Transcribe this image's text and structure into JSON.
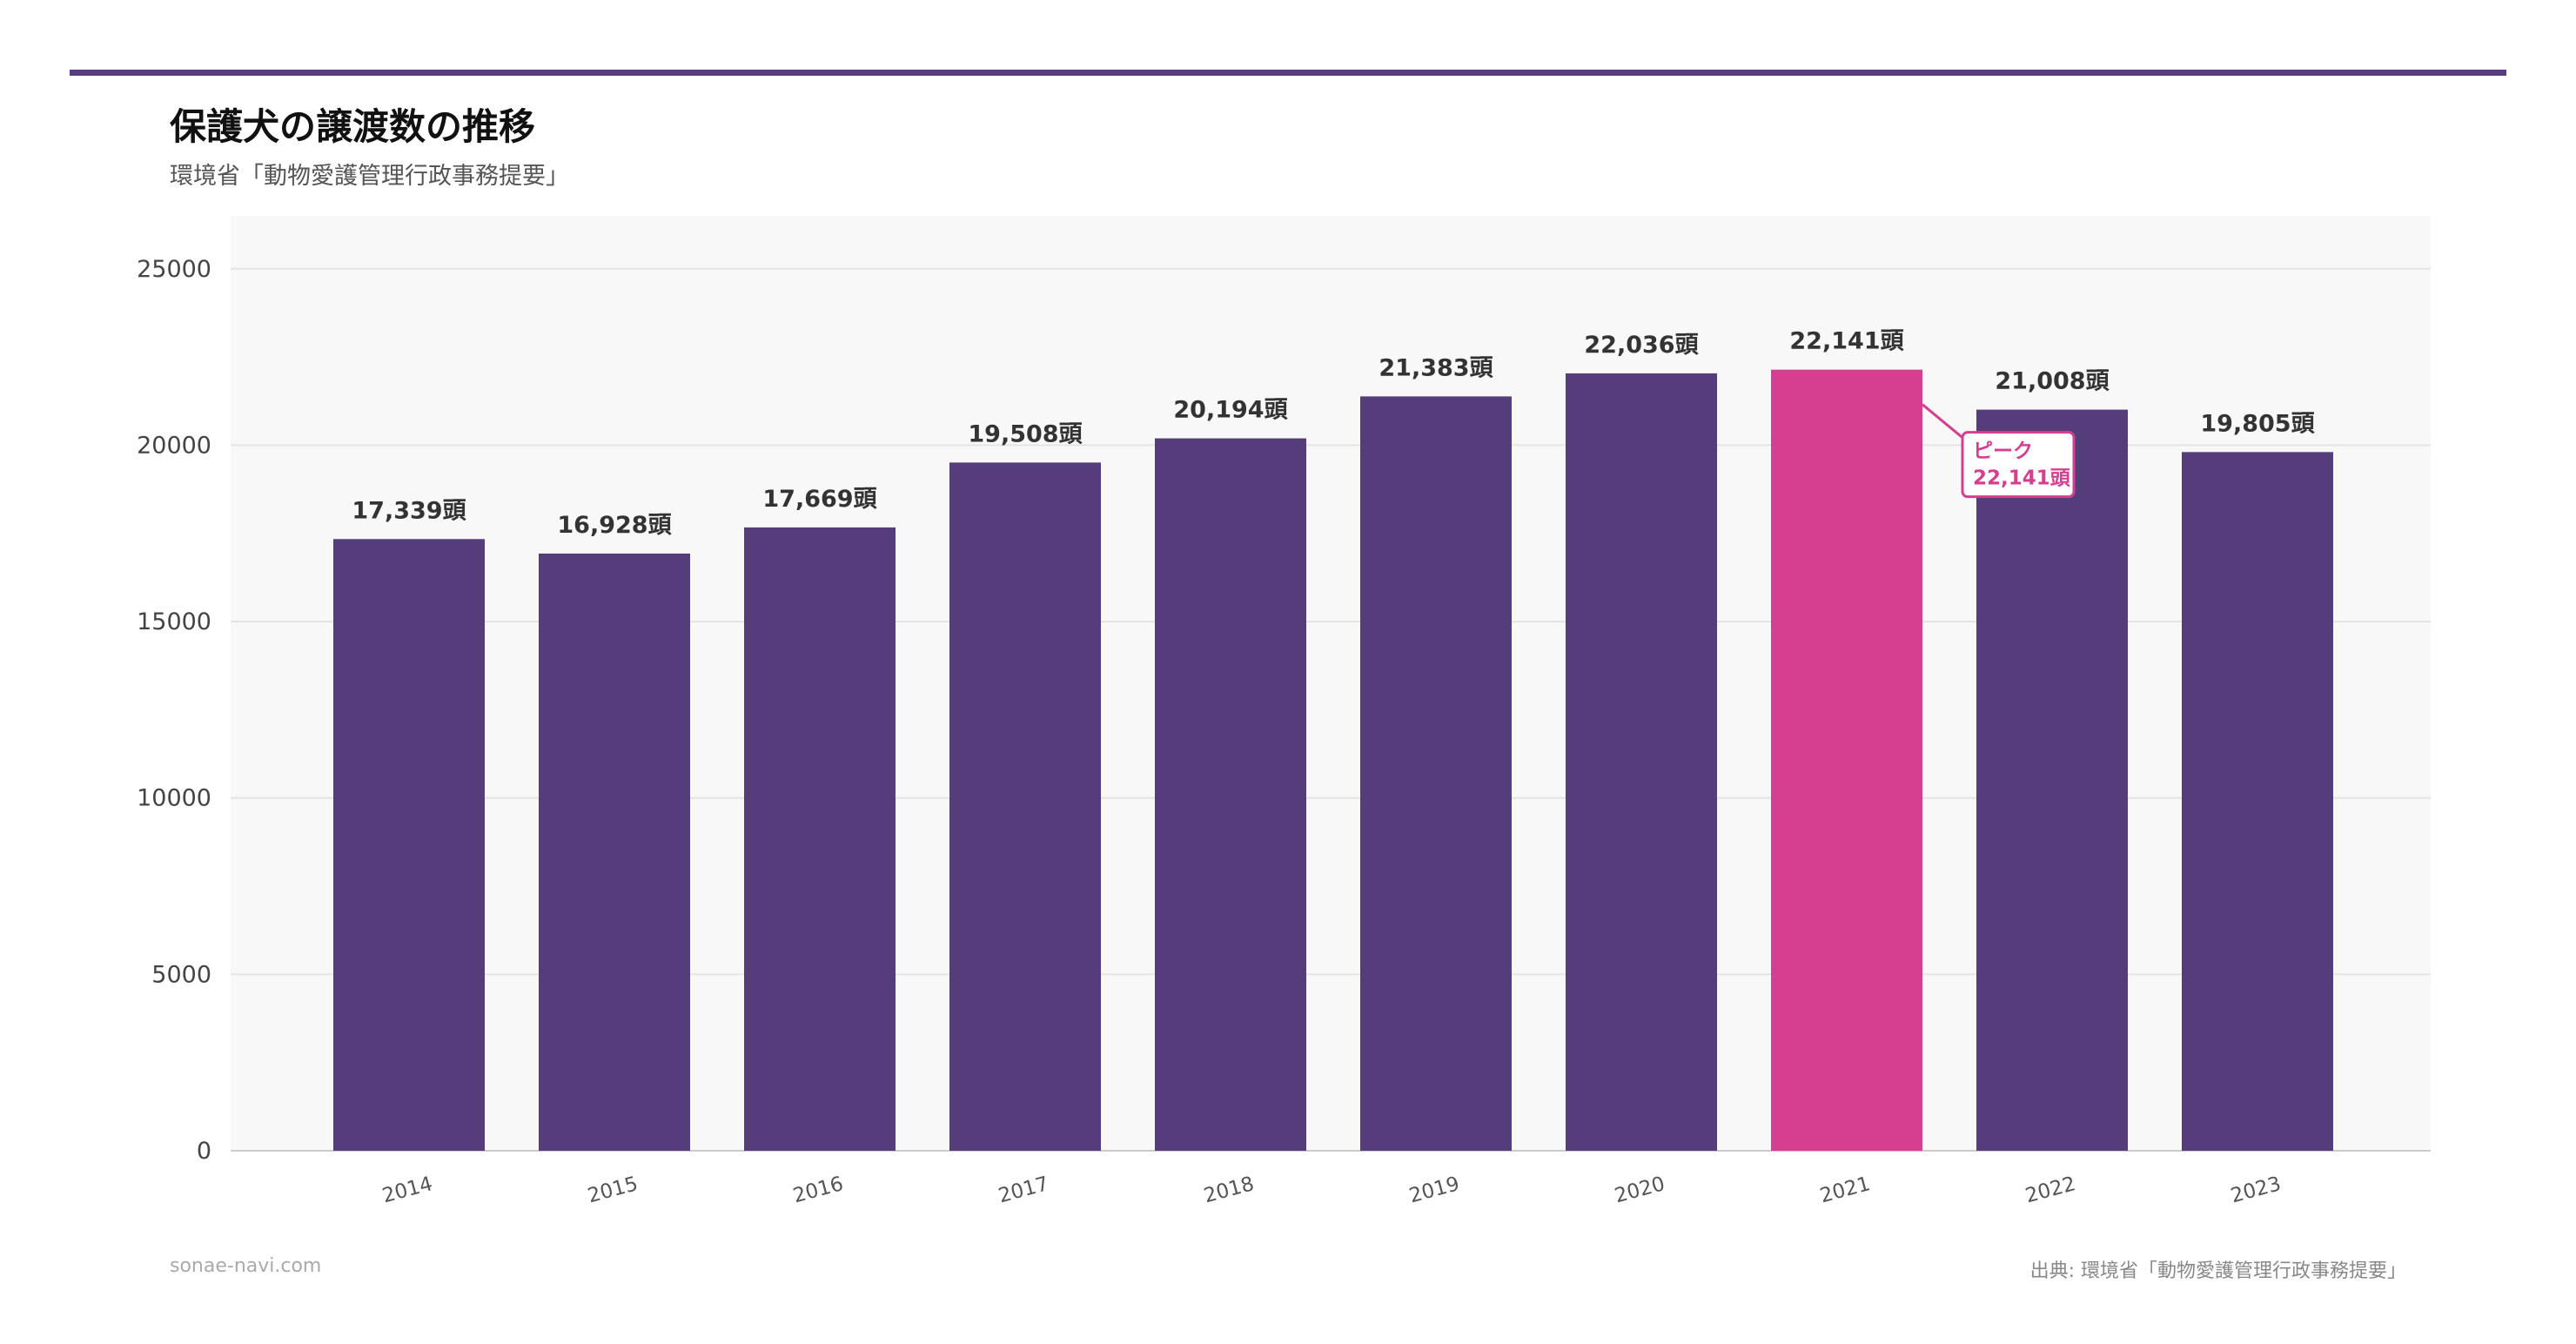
{
  "header": {
    "title": "保護犬の譲渡数の推移",
    "subtitle": "環境省「動物愛護管理行政事務提要」"
  },
  "footer": {
    "site": "sonae-navi.com",
    "source": "出典: 環境省「動物愛護管理行政事務提要」"
  },
  "colors": {
    "accent": "#563d7c",
    "bar": "#553d7b",
    "highlight": "#d63f8f",
    "plot_bg": "#f8f8f8",
    "grid": "#e4e4e4"
  },
  "chart_data": {
    "type": "bar",
    "title": "保護犬の譲渡数の推移",
    "xlabel": "",
    "ylabel": "",
    "categories": [
      "2014",
      "2015",
      "2016",
      "2017",
      "2018",
      "2019",
      "2020",
      "2021",
      "2022",
      "2023"
    ],
    "values": [
      17339,
      16928,
      17669,
      19508,
      20194,
      21383,
      22036,
      22141,
      21008,
      19805
    ],
    "value_labels": [
      "17,339頭",
      "16,928頭",
      "17,669頭",
      "19,508頭",
      "20,194頭",
      "21,383頭",
      "22,036頭",
      "22,141頭",
      "21,008頭",
      "19,805頭"
    ],
    "ylim": [
      0,
      26500
    ],
    "yticks": [
      0,
      5000,
      10000,
      15000,
      20000,
      25000
    ],
    "grid": true,
    "highlight_index": 7,
    "annotation": {
      "line1": "ピーク",
      "line2": "22,141頭"
    }
  }
}
